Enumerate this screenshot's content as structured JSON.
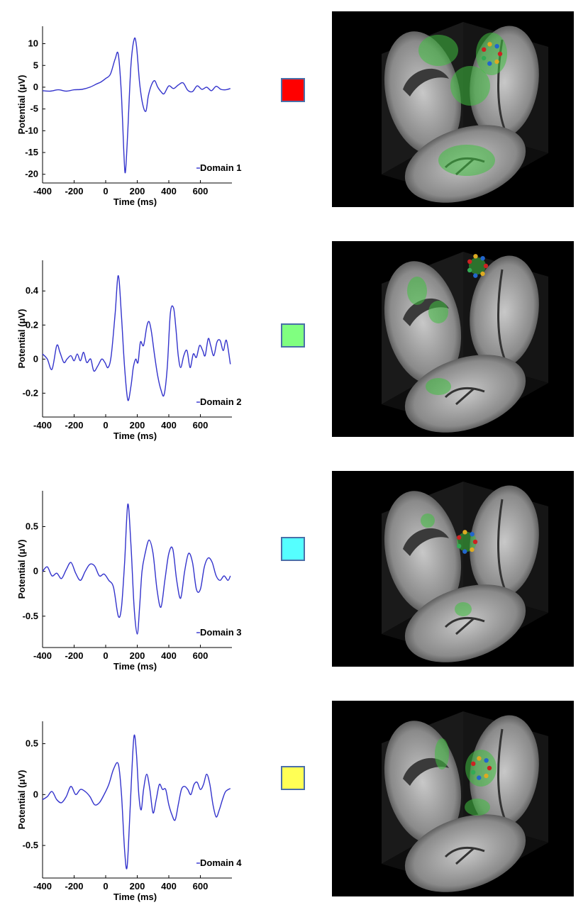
{
  "colors": {
    "line": "#3333cc",
    "swatches": [
      "#ff0000",
      "#80ff80",
      "#55ffff",
      "#ffff55"
    ],
    "swatch_border": "#4a6fa8",
    "brain_bg": "#000000",
    "activation": "#3fbf3f"
  },
  "chart_data": [
    {
      "type": "line",
      "xlabel": "Time (ms)",
      "ylabel": "Potential (μV)",
      "xlim": [
        -400,
        800
      ],
      "ylim": [
        -22,
        14
      ],
      "xticks": [
        "-400",
        "-200",
        "0",
        "200",
        "400",
        "600"
      ],
      "xtick_values": [
        -400,
        -200,
        0,
        200,
        400,
        600
      ],
      "yticks": [
        "10",
        "5",
        "0",
        "-5",
        "-10",
        "-15",
        "-20"
      ],
      "ytick_values": [
        10,
        5,
        0,
        -5,
        -10,
        -15,
        -20
      ],
      "series": [
        {
          "name": "Domain 1",
          "x": [
            -400,
            -350,
            -300,
            -250,
            -200,
            -150,
            -100,
            -60,
            -30,
            0,
            30,
            60,
            80,
            100,
            115,
            125,
            140,
            160,
            180,
            195,
            215,
            235,
            255,
            270,
            290,
            310,
            330,
            350,
            370,
            400,
            430,
            460,
            490,
            520,
            550,
            580,
            610,
            640,
            670,
            700,
            730,
            760,
            790
          ],
          "y": [
            -0.8,
            -0.9,
            -0.6,
            -0.9,
            -0.6,
            -0.5,
            0.0,
            0.7,
            1.2,
            2.0,
            3.0,
            6.5,
            7.5,
            -2.0,
            -15.0,
            -19.5,
            -10.0,
            5.0,
            11.0,
            9.5,
            1.0,
            -4.0,
            -5.5,
            -2.0,
            0.5,
            1.5,
            0.0,
            -1.0,
            -1.5,
            0.3,
            -0.3,
            0.5,
            1.0,
            -0.7,
            -1.0,
            0.3,
            -0.5,
            0.0,
            -0.8,
            0.2,
            -0.5,
            -0.6,
            -0.3
          ]
        }
      ]
    },
    {
      "type": "line",
      "xlabel": "Time (ms)",
      "ylabel": "Potential (μV)",
      "xlim": [
        -400,
        800
      ],
      "ylim": [
        -0.34,
        0.58
      ],
      "xticks": [
        "-400",
        "-200",
        "0",
        "200",
        "400",
        "600"
      ],
      "xtick_values": [
        -400,
        -200,
        0,
        200,
        400,
        600
      ],
      "yticks": [
        "0.4",
        "0.2",
        "0",
        "-0.2"
      ],
      "ytick_values": [
        0.4,
        0.2,
        0,
        -0.2
      ],
      "series": [
        {
          "name": "Domain 2",
          "x": [
            -400,
            -370,
            -340,
            -310,
            -290,
            -265,
            -245,
            -220,
            -200,
            -180,
            -160,
            -140,
            -120,
            -95,
            -75,
            -50,
            -25,
            -5,
            15,
            35,
            60,
            80,
            100,
            120,
            140,
            160,
            175,
            190,
            205,
            220,
            240,
            260,
            275,
            290,
            310,
            330,
            350,
            370,
            390,
            410,
            430,
            445,
            460,
            475,
            495,
            515,
            535,
            555,
            575,
            595,
            615,
            630,
            650,
            665,
            685,
            705,
            725,
            745,
            765,
            790
          ],
          "y": [
            0.03,
            0.0,
            -0.06,
            0.08,
            0.04,
            -0.02,
            0.0,
            0.02,
            -0.01,
            0.03,
            -0.01,
            0.04,
            -0.02,
            0.0,
            -0.07,
            -0.04,
            0.0,
            -0.02,
            -0.05,
            0.02,
            0.27,
            0.49,
            0.25,
            -0.05,
            -0.24,
            -0.16,
            -0.05,
            0.0,
            -0.02,
            0.1,
            0.08,
            0.19,
            0.22,
            0.16,
            0.02,
            -0.1,
            -0.18,
            -0.21,
            -0.05,
            0.27,
            0.3,
            0.18,
            0.02,
            -0.05,
            0.02,
            0.05,
            -0.05,
            0.03,
            0.01,
            0.08,
            0.05,
            0.02,
            0.12,
            0.08,
            0.02,
            0.1,
            0.11,
            0.05,
            0.11,
            -0.03
          ]
        }
      ]
    },
    {
      "type": "line",
      "xlabel": "Time (ms)",
      "ylabel": "Potential (μV)",
      "xlim": [
        -400,
        800
      ],
      "ylim": [
        -0.85,
        0.9
      ],
      "xticks": [
        "-400",
        "-200",
        "0",
        "200",
        "400",
        "600"
      ],
      "xtick_values": [
        -400,
        -200,
        0,
        200,
        400,
        600
      ],
      "yticks": [
        "0.5",
        "0",
        "-0.5"
      ],
      "ytick_values": [
        0.5,
        0,
        -0.5
      ],
      "series": [
        {
          "name": "Domain 3",
          "x": [
            -400,
            -370,
            -340,
            -310,
            -280,
            -250,
            -220,
            -190,
            -160,
            -130,
            -100,
            -70,
            -40,
            -10,
            20,
            50,
            80,
            100,
            120,
            140,
            160,
            180,
            200,
            215,
            230,
            250,
            275,
            300,
            325,
            350,
            375,
            400,
            425,
            450,
            475,
            500,
            525,
            550,
            575,
            600,
            625,
            650,
            675,
            700,
            725,
            750,
            775,
            790
          ],
          "y": [
            0.0,
            0.05,
            -0.05,
            -0.02,
            -0.08,
            0.02,
            0.1,
            -0.02,
            -0.1,
            0.0,
            0.08,
            0.06,
            -0.05,
            -0.03,
            -0.1,
            -0.18,
            -0.5,
            -0.4,
            0.1,
            0.75,
            0.3,
            -0.4,
            -0.7,
            -0.4,
            0.0,
            0.2,
            0.35,
            0.2,
            -0.2,
            -0.4,
            -0.1,
            0.2,
            0.25,
            -0.1,
            -0.3,
            0.0,
            0.2,
            0.1,
            -0.2,
            -0.2,
            0.05,
            0.15,
            0.1,
            -0.05,
            -0.1,
            -0.05,
            -0.1,
            -0.05
          ]
        }
      ]
    },
    {
      "type": "line",
      "xlabel": "Time (ms)",
      "ylabel": "Potential (μV)",
      "xlim": [
        -400,
        800
      ],
      "ylim": [
        -0.82,
        0.72
      ],
      "xticks": [
        "-400",
        "-200",
        "0",
        "200",
        "400",
        "600"
      ],
      "xtick_values": [
        -400,
        -200,
        0,
        200,
        400,
        600
      ],
      "yticks": [
        "0.5",
        "0",
        "-0.5"
      ],
      "ytick_values": [
        0.5,
        0,
        -0.5
      ],
      "series": [
        {
          "name": "Domain 4",
          "x": [
            -400,
            -370,
            -340,
            -310,
            -280,
            -250,
            -220,
            -190,
            -160,
            -130,
            -100,
            -70,
            -40,
            -10,
            20,
            50,
            80,
            100,
            120,
            135,
            150,
            165,
            180,
            195,
            210,
            225,
            240,
            260,
            280,
            300,
            320,
            340,
            360,
            380,
            400,
            420,
            440,
            460,
            480,
            500,
            520,
            540,
            560,
            580,
            600,
            620,
            640,
            660,
            680,
            700,
            720,
            740,
            760,
            790
          ],
          "y": [
            -0.05,
            -0.02,
            0.03,
            -0.05,
            -0.08,
            -0.02,
            0.08,
            0.0,
            0.05,
            0.03,
            -0.02,
            -0.1,
            -0.08,
            0.0,
            0.1,
            0.25,
            0.3,
            0.0,
            -0.55,
            -0.72,
            -0.3,
            0.2,
            0.58,
            0.4,
            0.0,
            -0.15,
            0.05,
            0.2,
            0.05,
            -0.18,
            -0.05,
            0.1,
            0.05,
            0.05,
            -0.1,
            -0.2,
            -0.25,
            -0.1,
            0.05,
            0.08,
            0.05,
            0.0,
            0.1,
            0.12,
            0.05,
            0.1,
            0.2,
            0.1,
            -0.1,
            -0.22,
            -0.15,
            -0.05,
            0.03,
            0.06
          ]
        }
      ]
    }
  ]
}
